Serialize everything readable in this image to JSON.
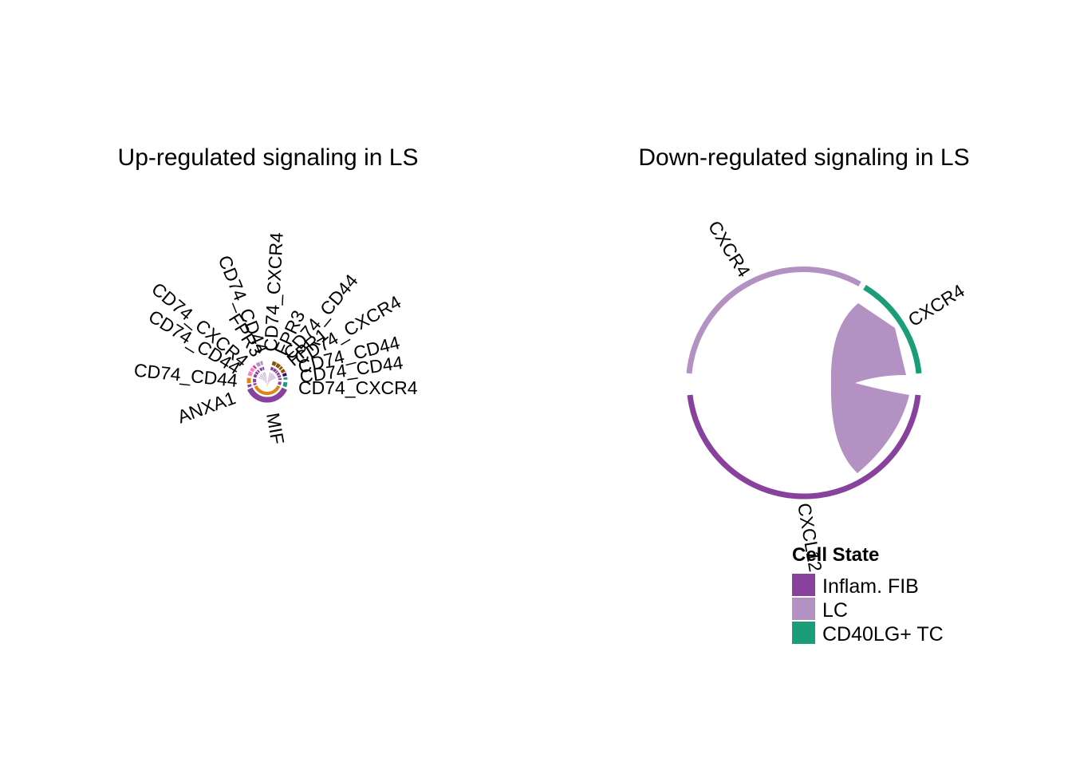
{
  "chart_data": [
    {
      "type": "chord",
      "title": "Up-regulated signaling in LS",
      "sectors": [
        {
          "label": "MIF",
          "color": "#88419D"
        },
        {
          "label": "ANXA1",
          "color": "#88419D"
        },
        {
          "label": "CD74_CD44",
          "color": "#E08214"
        },
        {
          "label": "CD74_CD44",
          "color": "#F781BF"
        },
        {
          "label": "CD74_CXCR4",
          "color": "#F781BF"
        },
        {
          "label": "FPR3",
          "color": "#E7298A"
        },
        {
          "label": "CD74_CD44",
          "color": "#B391C3"
        },
        {
          "label": "CD74_CXCR4",
          "color": "#B391C3"
        },
        {
          "label": "FPR3",
          "color": "#8C510A"
        },
        {
          "label": "CD74_CD44",
          "color": "#8C510A"
        },
        {
          "label": "FPR1",
          "color": "#8C510A"
        },
        {
          "label": "CD74_CXCR4",
          "color": "#8C510A"
        },
        {
          "label": "CD74_CD44",
          "color": "#3F007D"
        },
        {
          "label": "CD74_CD44",
          "color": "#1B9E77"
        },
        {
          "label": "CD74_CXCR4",
          "color": "#1B9E77"
        }
      ]
    },
    {
      "type": "chord",
      "title": "Down-regulated signaling in LS",
      "sectors": [
        {
          "label": "CXCL12",
          "color": "#88419D"
        },
        {
          "label": "CXCR4",
          "color": "#B391C3"
        },
        {
          "label": "CXCR4",
          "color": "#1B9E77"
        }
      ],
      "links": [
        {
          "from": "CXCL12",
          "to": "CXCR4",
          "color": "#B391C3"
        }
      ]
    }
  ],
  "legend": {
    "title": "Cell State",
    "items": [
      {
        "label": "Inflam. FIB",
        "color": "#88419D"
      },
      {
        "label": "LC",
        "color": "#B391C3"
      },
      {
        "label": "CD40LG+ TC",
        "color": "#1B9E77"
      }
    ]
  }
}
